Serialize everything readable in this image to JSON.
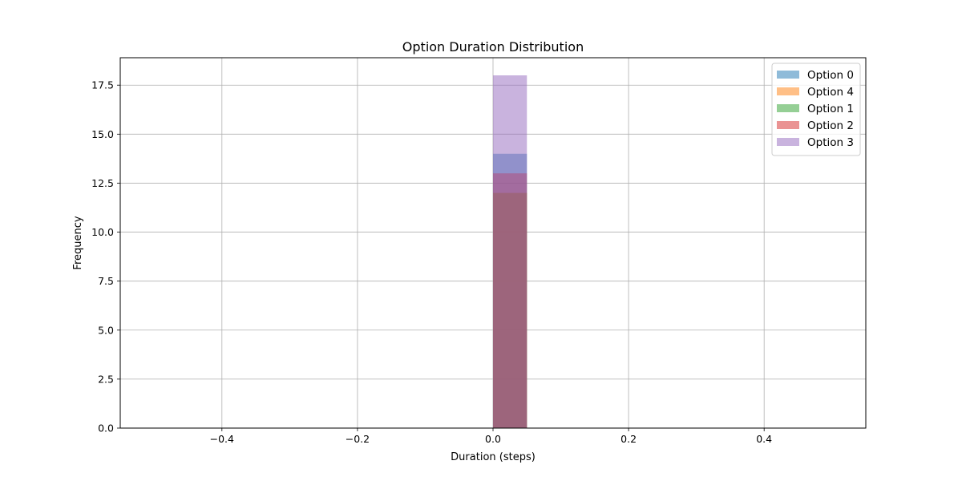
{
  "chart_data": {
    "type": "bar",
    "title": "Option Duration Distribution",
    "xlabel": "Duration (steps)",
    "ylabel": "Frequency",
    "xlim": [
      -0.55,
      0.55
    ],
    "ylim": [
      0,
      18.9
    ],
    "x_ticks": [
      -0.4,
      -0.2,
      0.0,
      0.2,
      0.4
    ],
    "x_tick_labels": [
      "−0.4",
      "−0.2",
      "0.0",
      "0.2",
      "0.4"
    ],
    "y_ticks": [
      0,
      2.5,
      5,
      7.5,
      10,
      12.5,
      15,
      17.5
    ],
    "y_tick_labels": [
      "0.0",
      "2.5",
      "5.0",
      "7.5",
      "10.0",
      "12.5",
      "15.0",
      "17.5"
    ],
    "grid": true,
    "legend_position": "top-right",
    "bin": [
      0.0,
      0.05
    ],
    "series": [
      {
        "name": "Option 0",
        "value": 14,
        "color": "#1f77b4"
      },
      {
        "name": "Option 4",
        "value": 12,
        "color": "#ff7f0e"
      },
      {
        "name": "Option 1",
        "value": 12,
        "color": "#2ca02c"
      },
      {
        "name": "Option 2",
        "value": 13,
        "color": "#d62728"
      },
      {
        "name": "Option 3",
        "value": 18,
        "color": "#9467bd"
      }
    ],
    "bar_opacity": 0.5
  }
}
